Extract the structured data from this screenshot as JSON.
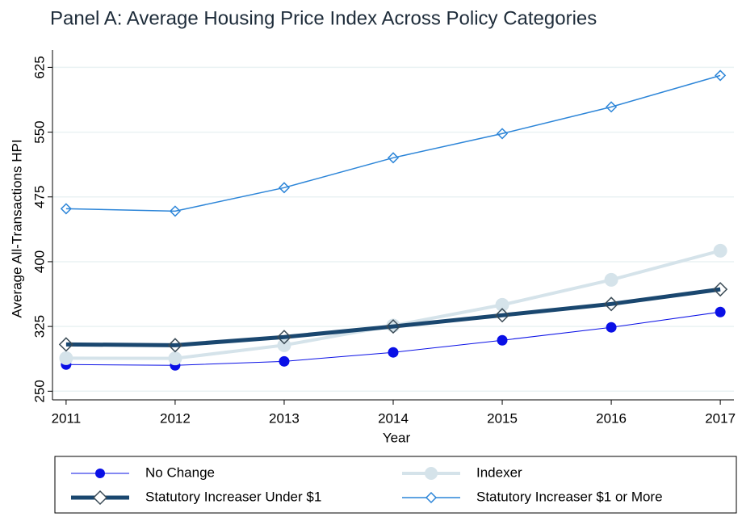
{
  "chart_data": {
    "type": "line",
    "title": "Panel A: Average Housing Price Index Across Policy Categories",
    "x_label": "Year",
    "y_label": "Average All-Transactions HPI",
    "x": [
      2011,
      2012,
      2013,
      2014,
      2015,
      2016,
      2017
    ],
    "xlim": [
      2010.875,
      2017.125
    ],
    "xticks": [
      2011,
      2012,
      2013,
      2014,
      2015,
      2016,
      2017
    ],
    "ylim": [
      240,
      645
    ],
    "yticks": [
      250,
      325,
      400,
      475,
      550,
      625
    ],
    "grid": true,
    "legend": "bottom",
    "series": [
      {
        "name": "No Change",
        "color": "#0a10e6",
        "marker": "circle",
        "fill": true,
        "line_width": 1,
        "values": [
          280.9,
          280,
          284.6,
          295,
          309,
          324,
          341.7
        ]
      },
      {
        "name": "Indexer",
        "color": "#d5e3ea",
        "marker": "circle",
        "fill": true,
        "line_width": 4,
        "values": [
          288.3,
          288,
          303.3,
          326,
          350,
          379,
          412.7
        ]
      },
      {
        "name": "Statutory Increaser Under $1",
        "color": "#1a476f",
        "marker": "diamond",
        "fill": false,
        "line_width": 5,
        "values": [
          304.2,
          303.3,
          312.7,
          325,
          338,
          351,
          368
        ]
      },
      {
        "name": "Statutory Increaser $1 or More",
        "color": "#2c85d8",
        "marker": "diamond",
        "fill": false,
        "line_width": 1.5,
        "values": [
          461.3,
          458.5,
          485.7,
          520.3,
          548.3,
          579.2,
          615.6
        ]
      }
    ]
  }
}
